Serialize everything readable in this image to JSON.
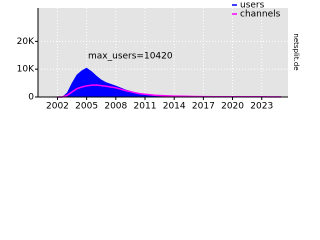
{
  "chart_data": {
    "type": "area",
    "annotation": "max_users=10420",
    "side_text": "netsplit.de",
    "x": [
      2002,
      2002.5,
      2003,
      2003.5,
      2004,
      2004.5,
      2005,
      2005.5,
      2006,
      2006.5,
      2007,
      2007.5,
      2008,
      2008.5,
      2009,
      2009.5,
      2010,
      2010.5,
      2011,
      2011.5,
      2012,
      2013,
      2014,
      2015,
      2016,
      2017,
      2018,
      2019,
      2020,
      2021,
      2022,
      2023,
      2024,
      2025
    ],
    "series": [
      {
        "name": "users",
        "color": "#0000ff",
        "values": [
          0,
          0,
          1500,
          5000,
          8000,
          9500,
          10420,
          9200,
          7600,
          6200,
          5200,
          4600,
          4000,
          3300,
          2600,
          2100,
          1600,
          1300,
          1000,
          800,
          600,
          420,
          300,
          220,
          170,
          130,
          100,
          90,
          80,
          70,
          60,
          50,
          40,
          30
        ]
      },
      {
        "name": "channels",
        "color": "#ff00ff",
        "values": [
          0,
          0,
          600,
          1800,
          3000,
          3600,
          4000,
          4200,
          4300,
          4100,
          3900,
          3600,
          3300,
          2800,
          2300,
          1900,
          1500,
          1200,
          1000,
          800,
          650,
          450,
          330,
          250,
          190,
          150,
          120,
          100,
          90,
          80,
          70,
          60,
          50,
          40
        ]
      }
    ],
    "xlim": [
      2000,
      2025.7
    ],
    "xticks": [
      2002,
      2005,
      2008,
      2011,
      2014,
      2017,
      2020,
      2023
    ],
    "ylim": [
      0,
      32000
    ],
    "yticks": [
      0,
      {
        "value": 10000,
        "label": "10K"
      },
      {
        "value": 20000,
        "label": "20K"
      }
    ],
    "grid": true,
    "legend": "top-right",
    "annotation_color": "#ff0000",
    "background": "#e4e4e4"
  }
}
